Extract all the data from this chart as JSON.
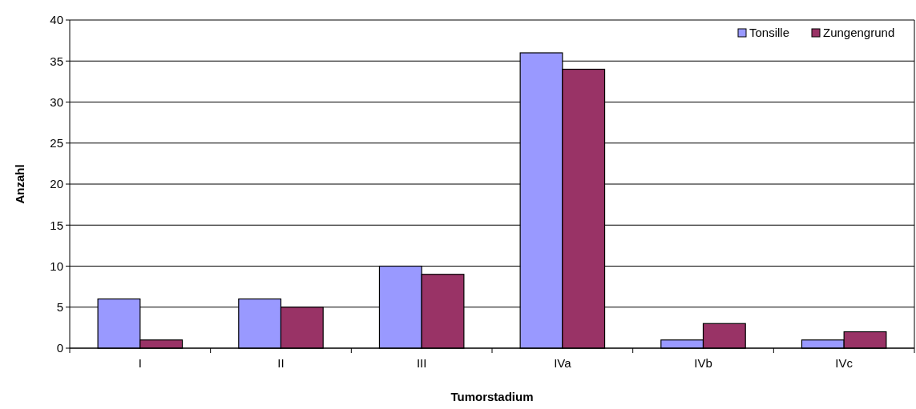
{
  "chart_data": {
    "type": "bar",
    "xlabel": "Tumorstadium",
    "ylabel": "Anzahl",
    "categories": [
      "I",
      "II",
      "III",
      "IVa",
      "IVb",
      "IVc"
    ],
    "series": [
      {
        "name": "Tonsille",
        "color": "#9999ff",
        "values": [
          6,
          6,
          10,
          36,
          1,
          1
        ]
      },
      {
        "name": "Zungengrund",
        "color": "#993366",
        "values": [
          1,
          5,
          9,
          34,
          3,
          2
        ]
      }
    ],
    "ylim": [
      0,
      40
    ],
    "yticks": [
      0,
      5,
      10,
      15,
      20,
      25,
      30,
      35,
      40
    ],
    "grid": "y",
    "legend": "top right"
  }
}
